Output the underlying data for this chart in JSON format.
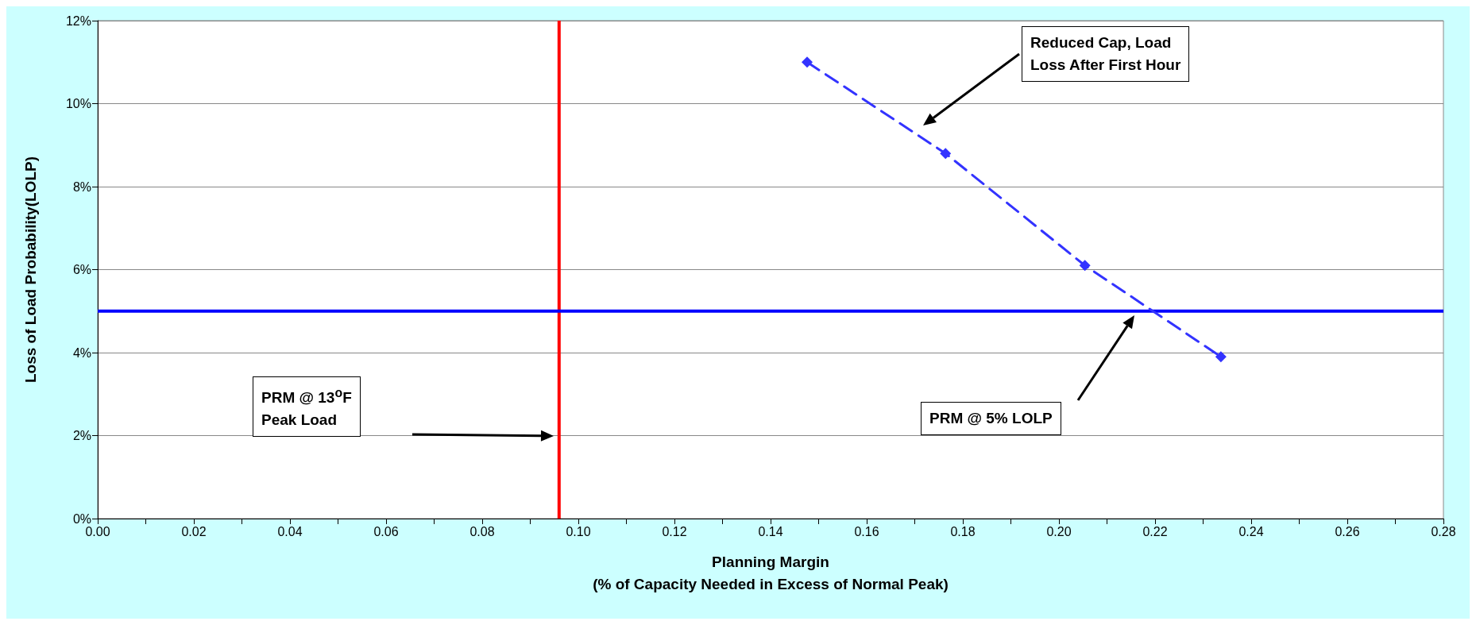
{
  "chart_data": {
    "type": "line",
    "xlabel": "Planning Margin\n(% of Capacity Needed in Excess of Normal Peak)",
    "ylabel": "Loss of Load Probability(LOLP)",
    "x": [
      0.1476,
      0.1764,
      0.2054,
      0.2337
    ],
    "series": [
      {
        "color": "#3333ff",
        "values": [
          11.0,
          8.8,
          6.1,
          3.9
        ]
      }
    ],
    "marker": "diamond",
    "line_style": "dashed",
    "grid": "y",
    "xlim": [
      0,
      0.28
    ],
    "ylim": [
      0,
      12
    ],
    "xticks": [
      {
        "value": 0,
        "label": "0.00"
      },
      {
        "value": 0.01,
        "label": null
      },
      {
        "value": 0.02,
        "label": "0.02"
      },
      {
        "value": 0.03,
        "label": null
      },
      {
        "value": 0.04,
        "label": "0.04"
      },
      {
        "value": 0.05,
        "label": null
      },
      {
        "value": 0.06,
        "label": "0.06"
      },
      {
        "value": 0.07,
        "label": null
      },
      {
        "value": 0.08,
        "label": "0.08"
      },
      {
        "value": 0.09,
        "label": null
      },
      {
        "value": 0.1,
        "label": "0.10"
      },
      {
        "value": 0.11,
        "label": null
      },
      {
        "value": 0.12,
        "label": "0.12"
      },
      {
        "value": 0.13,
        "label": null
      },
      {
        "value": 0.14,
        "label": "0.14"
      },
      {
        "value": 0.15,
        "label": null
      },
      {
        "value": 0.16,
        "label": "0.16"
      },
      {
        "value": 0.17,
        "label": null
      },
      {
        "value": 0.18,
        "label": "0.18"
      },
      {
        "value": 0.19,
        "label": null
      },
      {
        "value": 0.2,
        "label": "0.20"
      },
      {
        "value": 0.21,
        "label": null
      },
      {
        "value": 0.22,
        "label": "0.22"
      },
      {
        "value": 0.23,
        "label": null
      },
      {
        "value": 0.24,
        "label": "0.24"
      },
      {
        "value": 0.25,
        "label": null
      },
      {
        "value": 0.26,
        "label": "0.26"
      },
      {
        "value": 0.27,
        "label": null
      },
      {
        "value": 0.28,
        "label": "0.28"
      }
    ],
    "yticks": [
      {
        "value": 0,
        "label": "0%"
      },
      {
        "value": 2,
        "label": "2%"
      },
      {
        "value": 4,
        "label": "4%"
      },
      {
        "value": 6,
        "label": "6%"
      },
      {
        "value": 8,
        "label": "8%"
      },
      {
        "value": 10,
        "label": "10%"
      },
      {
        "value": 12,
        "label": "12%"
      }
    ],
    "ref_lines": [
      {
        "axis": "x",
        "value": 0.096,
        "color": "#ff0000",
        "line_style": "solid"
      },
      {
        "axis": "y",
        "value": 5,
        "color": "#0000ff",
        "line_style": "solid"
      }
    ],
    "annotations": [
      "Reduced Cap, Load\nLoss After First Hour",
      "PRM @ 5% LOLP",
      "PRM @ 13$^{o}$F\nPeak Load"
    ]
  }
}
